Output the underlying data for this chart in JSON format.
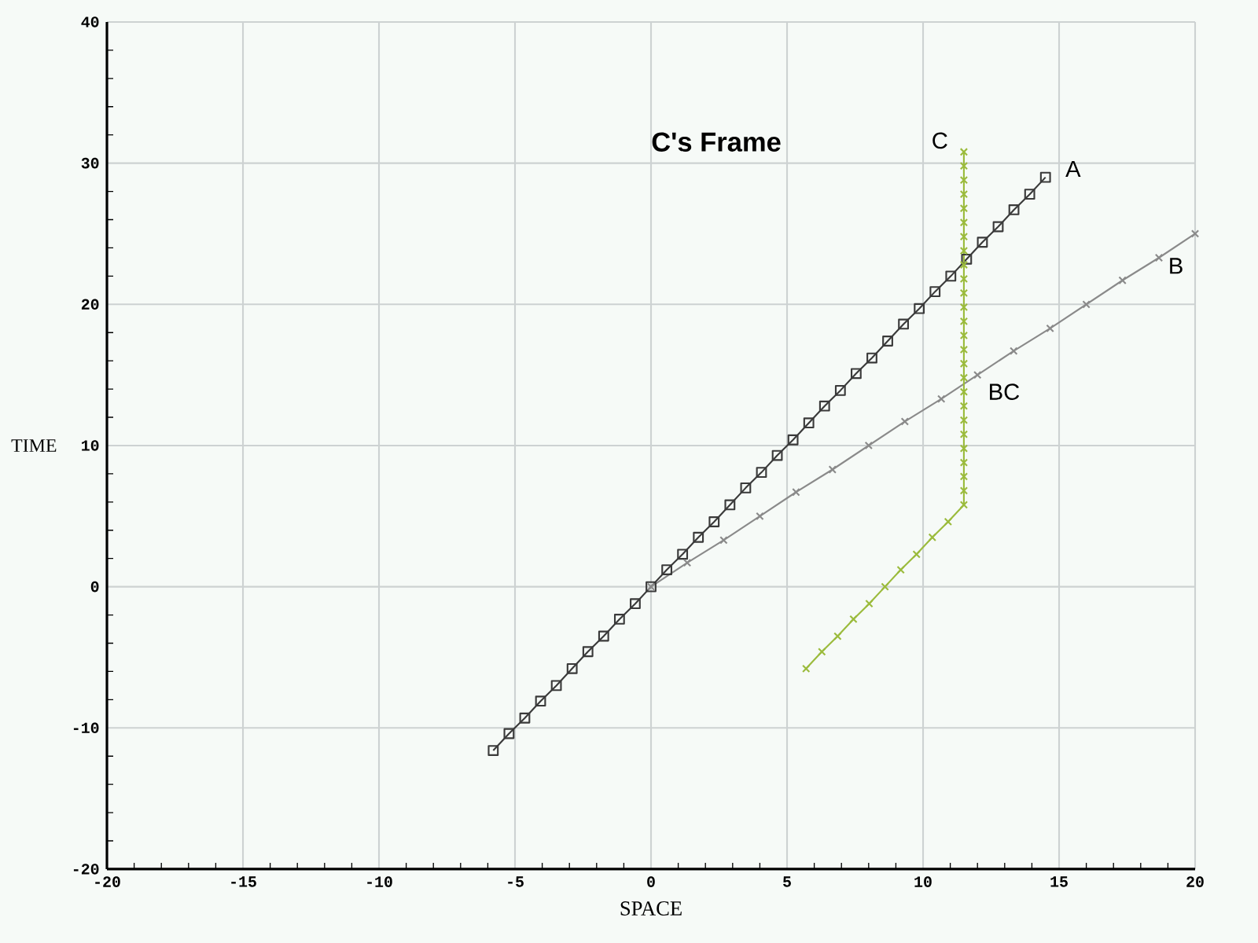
{
  "chart_data": {
    "type": "line",
    "title": "C's Frame",
    "xlabel": "SPACE",
    "ylabel": "TIME",
    "xlim": [
      -20,
      20
    ],
    "ylim": [
      -20,
      40
    ],
    "xticks": [
      -20,
      -15,
      -10,
      -5,
      0,
      5,
      10,
      15,
      20
    ],
    "yticks": [
      -20,
      -10,
      0,
      10,
      20,
      30,
      40
    ],
    "grid": true,
    "series": [
      {
        "name": "A",
        "color": "#3a3a3a",
        "marker": "square",
        "x": [
          -5.8,
          -5.22,
          -4.64,
          -4.06,
          -3.48,
          -2.9,
          -2.32,
          -1.74,
          -1.16,
          -0.58,
          0,
          0.58,
          1.16,
          1.74,
          2.32,
          2.9,
          3.48,
          4.06,
          4.64,
          5.22,
          5.8,
          6.38,
          6.96,
          7.54,
          8.12,
          8.7,
          9.28,
          9.86,
          10.44,
          11.02,
          11.6,
          12.18,
          12.76,
          13.34,
          13.92,
          14.5
        ],
        "values": [
          -11.6,
          -10.4,
          -9.3,
          -8.1,
          -7,
          -5.8,
          -4.6,
          -3.5,
          -2.3,
          -1.2,
          0,
          1.2,
          2.3,
          3.5,
          4.6,
          5.8,
          7,
          8.1,
          9.3,
          10.4,
          11.6,
          12.8,
          13.9,
          15.1,
          16.2,
          17.4,
          18.6,
          19.7,
          20.9,
          22,
          23.2,
          24.4,
          25.5,
          26.7,
          27.8,
          29
        ]
      },
      {
        "name": "B",
        "color": "#8a8a8a",
        "marker": "cross",
        "x": [
          0,
          1.33,
          2.67,
          4,
          5.33,
          6.67,
          8,
          9.33,
          10.67,
          12,
          13.33,
          14.67,
          16,
          17.33,
          18.67,
          20
        ],
        "values": [
          0,
          1.7,
          3.3,
          5,
          6.7,
          8.3,
          10,
          11.7,
          13.3,
          15,
          16.7,
          18.3,
          20,
          21.7,
          23.3,
          25
        ]
      },
      {
        "name": "C",
        "color": "#9bbb3c",
        "marker": "cross",
        "x": [
          5.7,
          6.28,
          6.86,
          7.44,
          8.02,
          8.6,
          9.18,
          9.76,
          10.34,
          10.92,
          11.5,
          11.5,
          11.5,
          11.5,
          11.5,
          11.5,
          11.5,
          11.5,
          11.5,
          11.5,
          11.5,
          11.5,
          11.5,
          11.5,
          11.5,
          11.5,
          11.5,
          11.5,
          11.5,
          11.5,
          11.5,
          11.5,
          11.5,
          11.5,
          11.5,
          11.5
        ],
        "values": [
          -5.8,
          -4.6,
          -3.5,
          -2.3,
          -1.2,
          0,
          1.2,
          2.3,
          3.5,
          4.6,
          5.8,
          6.8,
          7.8,
          8.8,
          9.8,
          10.8,
          11.8,
          12.8,
          13.8,
          14.8,
          15.8,
          16.8,
          17.8,
          18.8,
          19.8,
          20.8,
          21.8,
          22.8,
          23.8,
          24.8,
          25.8,
          26.8,
          27.8,
          28.8,
          29.8,
          30.8
        ]
      }
    ],
    "annotations": [
      {
        "text": "BC",
        "x": 11.5,
        "y": 14.4
      }
    ]
  }
}
